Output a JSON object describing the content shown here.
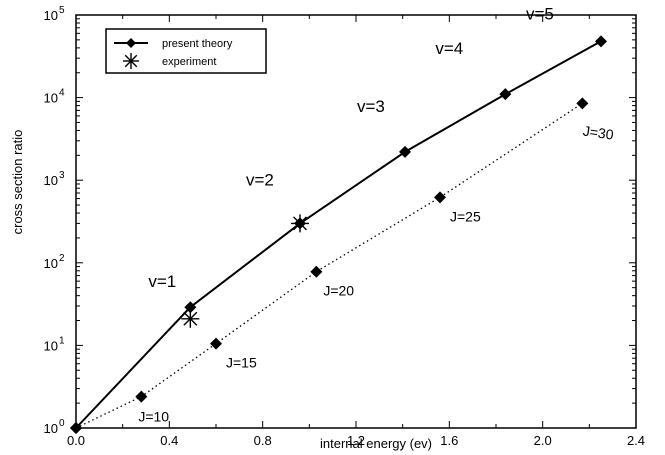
{
  "chart_data": {
    "type": "line",
    "xlabel": "internal energy (ev)",
    "ylabel": "cross section ratio",
    "xlim": [
      0.0,
      2.4
    ],
    "ylim": [
      1,
      100000
    ],
    "yscale": "log",
    "grid": false,
    "legend_placement": "top-left",
    "x_ticks": [
      "0.0",
      "0.4",
      "0.8",
      "1.2",
      "1.6",
      "2.0",
      "2.4"
    ],
    "y_ticks": [
      {
        "base": "10",
        "exp": "0"
      },
      {
        "base": "10",
        "exp": "1"
      },
      {
        "base": "10",
        "exp": "2"
      },
      {
        "base": "10",
        "exp": "3"
      },
      {
        "base": "10",
        "exp": "4"
      },
      {
        "base": "10",
        "exp": "5"
      }
    ],
    "series": [
      {
        "name": "present theory",
        "style": "solid",
        "marker": "diamond",
        "x": [
          0.0,
          0.49,
          0.96,
          1.41,
          1.84,
          2.25
        ],
        "y": [
          1,
          29,
          300,
          2200,
          11000,
          48000
        ],
        "point_labels": [
          "",
          "v=1",
          "v=2",
          "v=3",
          "v=4",
          "v=5"
        ]
      },
      {
        "name": "",
        "style": "dotted",
        "marker": "diamond",
        "x": [
          0.0,
          0.28,
          0.6,
          1.03,
          1.56,
          2.17
        ],
        "y": [
          1,
          2.4,
          10.5,
          78,
          620,
          8500
        ],
        "point_labels": [
          "",
          "J=10",
          "J=15",
          "J=20",
          "J=25",
          "J=30"
        ]
      },
      {
        "name": "experiment",
        "style": "none",
        "marker": "asterisk",
        "x": [
          0.49,
          0.96
        ],
        "y": [
          21,
          300
        ]
      }
    ]
  }
}
